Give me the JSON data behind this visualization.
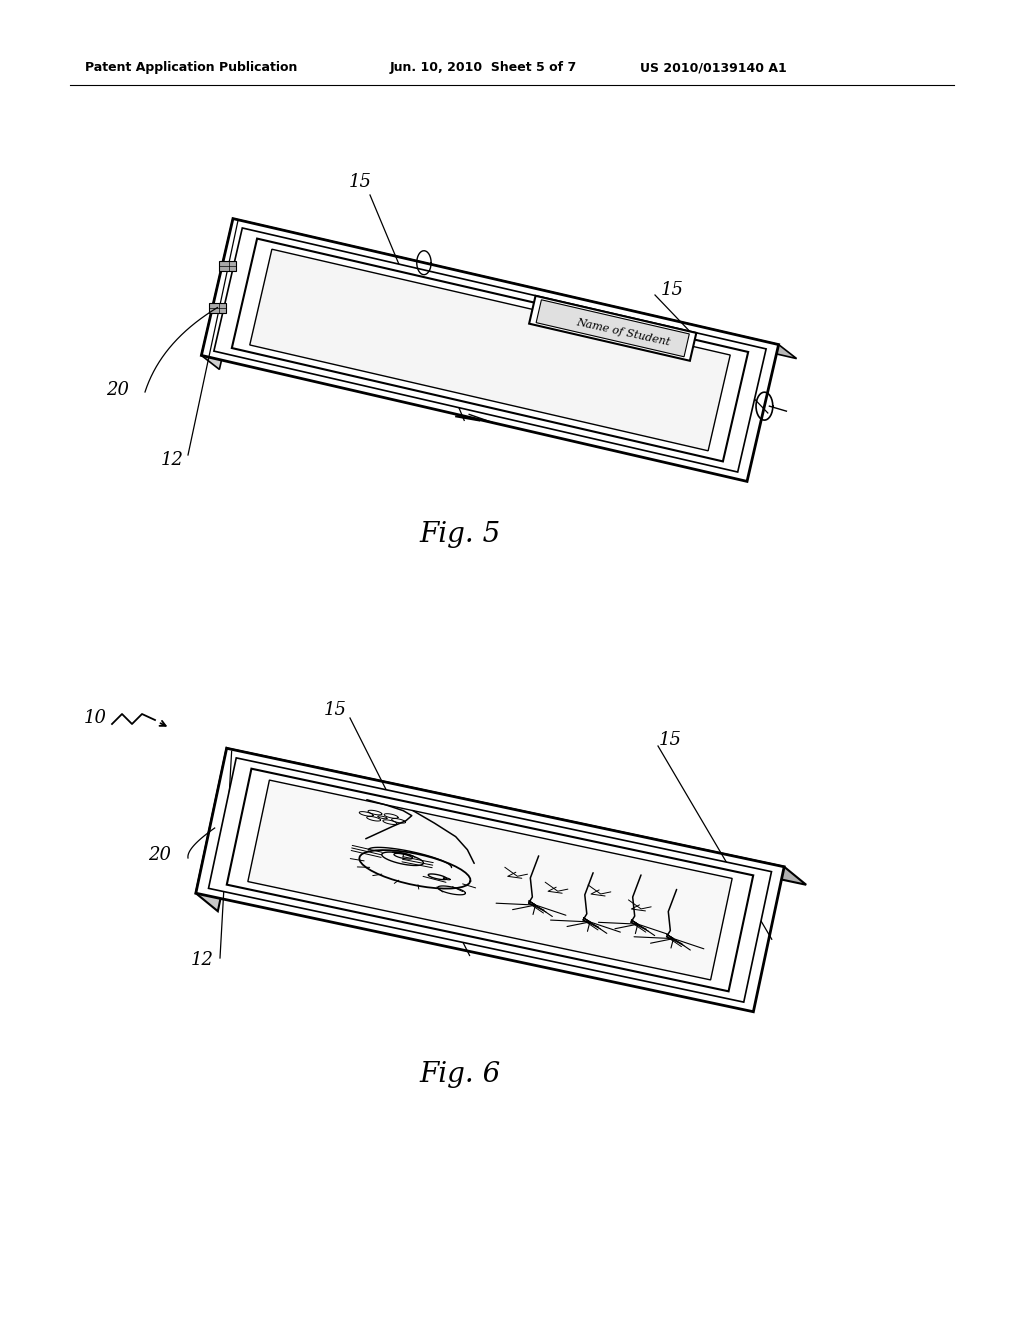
{
  "title_header_left": "Patent Application Publication",
  "title_header_mid": "Jun. 10, 2010  Sheet 5 of 7",
  "title_header_right": "US 2010/0139140 A1",
  "bg_color": "#ffffff",
  "line_color": "#000000"
}
